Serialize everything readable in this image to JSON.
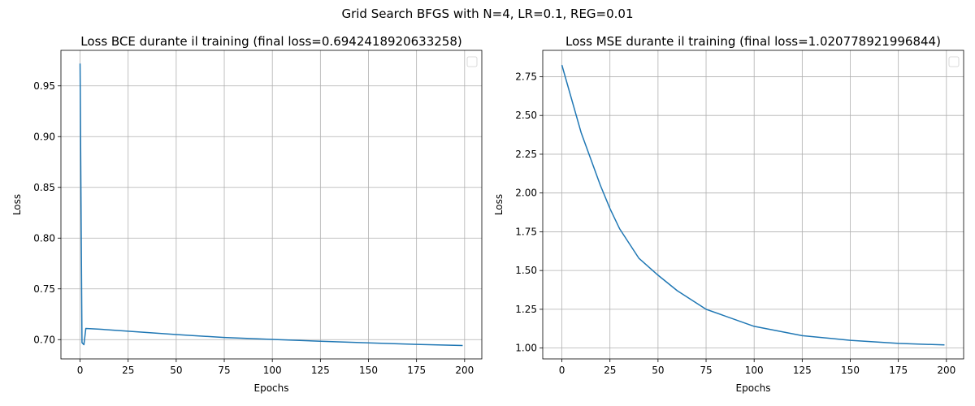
{
  "figure": {
    "suptitle": "Grid Search BFGS with N=4, LR=0.1, REG=0.01"
  },
  "chart_data": [
    {
      "type": "line",
      "title": "Loss BCE durante il training (final loss=0.6942418920633258)",
      "xlabel": "Epochs",
      "ylabel": "Loss",
      "xlim": [
        -9.95,
        208.95
      ],
      "ylim": [
        0.681,
        0.985
      ],
      "xticks": [
        0,
        25,
        50,
        75,
        100,
        125,
        150,
        175,
        200
      ],
      "yticks": [
        0.7,
        0.75,
        0.8,
        0.85,
        0.9,
        0.95
      ],
      "ytick_labels": [
        "0.70",
        "0.75",
        "0.80",
        "0.85",
        "0.90",
        "0.95"
      ],
      "grid": true,
      "legend": "top-right",
      "color": "#1f77b4",
      "series": [
        {
          "x": [
            0,
            1,
            2,
            3,
            10,
            25,
            50,
            75,
            100,
            125,
            150,
            175,
            199
          ],
          "y": [
            0.972,
            0.697,
            0.695,
            0.711,
            0.7103,
            0.7083,
            0.705,
            0.7021,
            0.7002,
            0.6984,
            0.6968,
            0.6953,
            0.6942
          ]
        }
      ]
    },
    {
      "type": "line",
      "title": "Loss MSE durante il training (final loss=1.020778921996844)",
      "xlabel": "Epochs",
      "ylabel": "Loss",
      "xlim": [
        -9.95,
        208.95
      ],
      "ylim": [
        0.93,
        2.92
      ],
      "xticks": [
        0,
        25,
        50,
        75,
        100,
        125,
        150,
        175,
        200
      ],
      "yticks": [
        1.0,
        1.25,
        1.5,
        1.75,
        2.0,
        2.25,
        2.5,
        2.75
      ],
      "ytick_labels": [
        "1.00",
        "1.25",
        "1.50",
        "1.75",
        "2.00",
        "2.25",
        "2.50",
        "2.75"
      ],
      "grid": true,
      "legend": "top-right",
      "color": "#1f77b4",
      "series": [
        {
          "x": [
            0,
            10,
            20,
            25,
            30,
            40,
            50,
            60,
            75,
            100,
            125,
            150,
            175,
            199
          ],
          "y": [
            2.825,
            2.39,
            2.05,
            1.9,
            1.77,
            1.58,
            1.47,
            1.37,
            1.25,
            1.14,
            1.08,
            1.05,
            1.03,
            1.02
          ]
        }
      ]
    }
  ]
}
